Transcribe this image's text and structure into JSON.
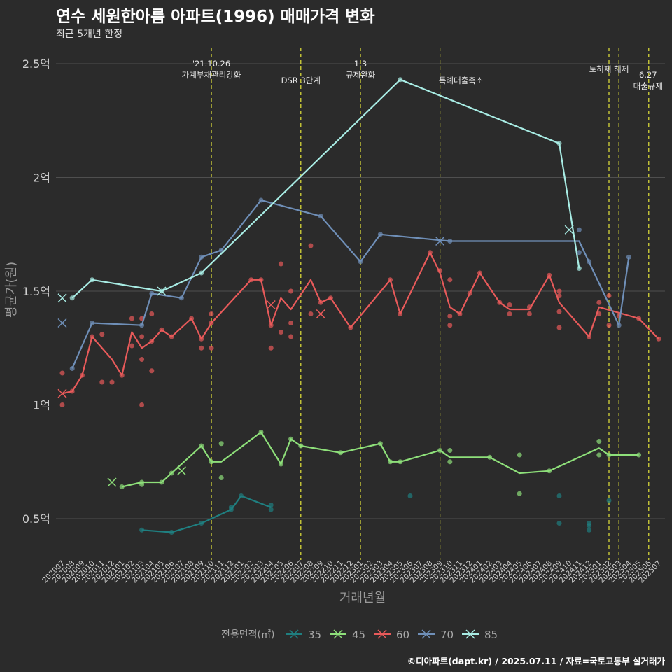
{
  "header": {
    "title": "연수 세원한아름 아파트(1996) 매매가격 변화",
    "subtitle": "최근 5개년 한정"
  },
  "caption": "©디아파트(dapt.kr) / 2025.07.11 / 자료=국토교통부 실거래가",
  "colors": {
    "35": "#1f7f80",
    "45": "#8ee07a",
    "60": "#e85a5a",
    "70": "#6f8fb8",
    "85": "#a8ece4",
    "background": "#2b2b2b",
    "grid": "#4f4f4f",
    "event_line": "#e5e53a"
  },
  "chart_data": {
    "type": "line",
    "xlabel": "거래년월",
    "ylabel": "평균가(원)",
    "ylim": [
      0.33,
      2.56
    ],
    "y_unit": "억",
    "yticks": [
      {
        "value": 0.5,
        "label": "0.5억"
      },
      {
        "value": 1.0,
        "label": "1억"
      },
      {
        "value": 1.5,
        "label": "1.5억"
      },
      {
        "value": 2.0,
        "label": "2억"
      },
      {
        "value": 2.5,
        "label": "2.5억"
      }
    ],
    "grid": true,
    "legend": {
      "title": "전용면적(㎡)",
      "position": "bottom"
    },
    "categories": [
      "202007",
      "202008",
      "202009",
      "202010",
      "202011",
      "202012",
      "202101",
      "202102",
      "202103",
      "202104",
      "202105",
      "202106",
      "202107",
      "202108",
      "202109",
      "202110",
      "202111",
      "202112",
      "202201",
      "202202",
      "202203",
      "202204",
      "202205",
      "202206",
      "202207",
      "202208",
      "202209",
      "202210",
      "202211",
      "202212",
      "202301",
      "202302",
      "202303",
      "202304",
      "202305",
      "202306",
      "202307",
      "202308",
      "202309",
      "202310",
      "202311",
      "202312",
      "202401",
      "202402",
      "202403",
      "202404",
      "202405",
      "202406",
      "202407",
      "202408",
      "202409",
      "202410",
      "202411",
      "202412",
      "202501",
      "202502",
      "202503",
      "202504",
      "202505",
      "202506",
      "202507"
    ],
    "events": [
      {
        "x": "202110",
        "label": "'21.10.26\n가계부채관리강화"
      },
      {
        "x": "202207",
        "label": "DSR 3단계"
      },
      {
        "x": "202301",
        "label": "1.3\n규제완화"
      },
      {
        "x": "202309",
        "label": "특례대출축소"
      },
      {
        "x": "202502",
        "label": "토허제 해제"
      },
      {
        "x": "202503",
        "label": ""
      },
      {
        "x": "202506",
        "label": "6.27\n대출규제"
      }
    ],
    "series": [
      {
        "name": "35",
        "line": [
          [
            "202103",
            0.45
          ],
          [
            "202106",
            0.44
          ],
          [
            "202109",
            0.48
          ],
          [
            "202112",
            0.54
          ],
          [
            "202201",
            0.6
          ],
          [
            "202204",
            0.55
          ]
        ],
        "points": [
          [
            "202103",
            0.45
          ],
          [
            "202106",
            0.44
          ],
          [
            "202109",
            0.48
          ],
          [
            "202112",
            0.54
          ],
          [
            "202112",
            0.55
          ],
          [
            "202201",
            0.6
          ],
          [
            "202204",
            0.54
          ],
          [
            "202204",
            0.56
          ],
          [
            "202306",
            0.6
          ],
          [
            "202409",
            0.6
          ],
          [
            "202409",
            0.48
          ],
          [
            "202412",
            0.45
          ],
          [
            "202412",
            0.47
          ],
          [
            "202412",
            0.48
          ],
          [
            "202502",
            0.58
          ]
        ],
        "cancelled": []
      },
      {
        "name": "45",
        "line": [
          [
            "202101",
            0.64
          ],
          [
            "202103",
            0.66
          ],
          [
            "202105",
            0.66
          ],
          [
            "202109",
            0.82
          ],
          [
            "202110",
            0.75
          ],
          [
            "202111",
            0.75
          ],
          [
            "202203",
            0.88
          ],
          [
            "202205",
            0.74
          ],
          [
            "202206",
            0.85
          ],
          [
            "202207",
            0.82
          ],
          [
            "202211",
            0.79
          ],
          [
            "202303",
            0.83
          ],
          [
            "202304",
            0.75
          ],
          [
            "202305",
            0.75
          ],
          [
            "202309",
            0.8
          ],
          [
            "202310",
            0.77
          ],
          [
            "202402",
            0.77
          ],
          [
            "202405",
            0.7
          ],
          [
            "202408",
            0.71
          ],
          [
            "202501",
            0.81
          ],
          [
            "202502",
            0.78
          ],
          [
            "202505",
            0.78
          ]
        ],
        "points": [
          [
            "202101",
            0.64
          ],
          [
            "202103",
            0.65
          ],
          [
            "202103",
            0.66
          ],
          [
            "202105",
            0.66
          ],
          [
            "202106",
            0.7
          ],
          [
            "202109",
            0.82
          ],
          [
            "202110",
            0.75
          ],
          [
            "202111",
            0.83
          ],
          [
            "202111",
            0.68
          ],
          [
            "202203",
            0.88
          ],
          [
            "202205",
            0.74
          ],
          [
            "202206",
            0.85
          ],
          [
            "202207",
            0.82
          ],
          [
            "202211",
            0.79
          ],
          [
            "202303",
            0.83
          ],
          [
            "202304",
            0.75
          ],
          [
            "202305",
            0.75
          ],
          [
            "202309",
            0.8
          ],
          [
            "202310",
            0.8
          ],
          [
            "202310",
            0.75
          ],
          [
            "202402",
            0.77
          ],
          [
            "202405",
            0.78
          ],
          [
            "202405",
            0.61
          ],
          [
            "202408",
            0.71
          ],
          [
            "202501",
            0.84
          ],
          [
            "202501",
            0.78
          ],
          [
            "202502",
            0.78
          ],
          [
            "202505",
            0.78
          ]
        ],
        "cancelled": [
          [
            "202012",
            0.66
          ],
          [
            "202107",
            0.71
          ]
        ]
      },
      {
        "name": "60",
        "line": [
          [
            "202007",
            1.05
          ],
          [
            "202008",
            1.06
          ],
          [
            "202009",
            1.13
          ],
          [
            "202010",
            1.3
          ],
          [
            "202012",
            1.2
          ],
          [
            "202101",
            1.13
          ],
          [
            "202102",
            1.32
          ],
          [
            "202103",
            1.25
          ],
          [
            "202104",
            1.28
          ],
          [
            "202105",
            1.33
          ],
          [
            "202106",
            1.3
          ],
          [
            "202108",
            1.38
          ],
          [
            "202109",
            1.29
          ],
          [
            "202110",
            1.36
          ],
          [
            "202202",
            1.55
          ],
          [
            "202203",
            1.55
          ],
          [
            "202204",
            1.35
          ],
          [
            "202205",
            1.47
          ],
          [
            "202206",
            1.42
          ],
          [
            "202208",
            1.55
          ],
          [
            "202209",
            1.45
          ],
          [
            "202210",
            1.47
          ],
          [
            "202212",
            1.34
          ],
          [
            "202304",
            1.55
          ],
          [
            "202305",
            1.4
          ],
          [
            "202308",
            1.67
          ],
          [
            "202309",
            1.58
          ],
          [
            "202310",
            1.43
          ],
          [
            "202311",
            1.4
          ],
          [
            "202312",
            1.49
          ],
          [
            "202401",
            1.58
          ],
          [
            "202403",
            1.45
          ],
          [
            "202404",
            1.42
          ],
          [
            "202406",
            1.42
          ],
          [
            "202408",
            1.57
          ],
          [
            "202409",
            1.45
          ],
          [
            "202412",
            1.3
          ],
          [
            "202501",
            1.43
          ],
          [
            "202505",
            1.38
          ],
          [
            "202507",
            1.29
          ]
        ],
        "points": [
          [
            "202007",
            1.14
          ],
          [
            "202007",
            1.0
          ],
          [
            "202008",
            1.06
          ],
          [
            "202009",
            1.13
          ],
          [
            "202010",
            1.3
          ],
          [
            "202011",
            1.1
          ],
          [
            "202011",
            1.31
          ],
          [
            "202012",
            1.1
          ],
          [
            "202101",
            1.13
          ],
          [
            "202102",
            1.38
          ],
          [
            "202102",
            1.26
          ],
          [
            "202103",
            1.38
          ],
          [
            "202103",
            1.3
          ],
          [
            "202103",
            1.2
          ],
          [
            "202103",
            1.0
          ],
          [
            "202104",
            1.4
          ],
          [
            "202104",
            1.15
          ],
          [
            "202104",
            1.28
          ],
          [
            "202105",
            1.33
          ],
          [
            "202106",
            1.3
          ],
          [
            "202108",
            1.38
          ],
          [
            "202109",
            1.25
          ],
          [
            "202109",
            1.29
          ],
          [
            "202110",
            1.4
          ],
          [
            "202110",
            1.25
          ],
          [
            "202110",
            1.36
          ],
          [
            "202202",
            1.55
          ],
          [
            "202203",
            1.55
          ],
          [
            "202204",
            1.25
          ],
          [
            "202204",
            1.35
          ],
          [
            "202205",
            1.62
          ],
          [
            "202205",
            1.32
          ],
          [
            "202206",
            1.5
          ],
          [
            "202206",
            1.36
          ],
          [
            "202206",
            1.3
          ],
          [
            "202208",
            1.7
          ],
          [
            "202208",
            1.4
          ],
          [
            "202209",
            1.45
          ],
          [
            "202210",
            1.47
          ],
          [
            "202212",
            1.34
          ],
          [
            "202304",
            1.55
          ],
          [
            "202305",
            1.4
          ],
          [
            "202308",
            1.67
          ],
          [
            "202309",
            1.59
          ],
          [
            "202310",
            1.55
          ],
          [
            "202310",
            1.39
          ],
          [
            "202310",
            1.35
          ],
          [
            "202311",
            1.4
          ],
          [
            "202312",
            1.49
          ],
          [
            "202401",
            1.58
          ],
          [
            "202403",
            1.45
          ],
          [
            "202404",
            1.44
          ],
          [
            "202404",
            1.4
          ],
          [
            "202406",
            1.43
          ],
          [
            "202406",
            1.4
          ],
          [
            "202408",
            1.57
          ],
          [
            "202409",
            1.5
          ],
          [
            "202409",
            1.48
          ],
          [
            "202409",
            1.41
          ],
          [
            "202409",
            1.34
          ],
          [
            "202412",
            1.3
          ],
          [
            "202501",
            1.45
          ],
          [
            "202501",
            1.4
          ],
          [
            "202502",
            1.48
          ],
          [
            "202502",
            1.35
          ],
          [
            "202503",
            1.39
          ],
          [
            "202505",
            1.38
          ],
          [
            "202507",
            1.29
          ]
        ],
        "cancelled": [
          [
            "202007",
            1.05
          ],
          [
            "202204",
            1.44
          ],
          [
            "202209",
            1.4
          ]
        ]
      },
      {
        "name": "70",
        "line": [
          [
            "202008",
            1.16
          ],
          [
            "202010",
            1.36
          ],
          [
            "202103",
            1.35
          ],
          [
            "202104",
            1.49
          ],
          [
            "202107",
            1.47
          ],
          [
            "202109",
            1.65
          ],
          [
            "202111",
            1.68
          ],
          [
            "202203",
            1.9
          ],
          [
            "202209",
            1.83
          ],
          [
            "202301",
            1.63
          ],
          [
            "202303",
            1.75
          ],
          [
            "202310",
            1.72
          ],
          [
            "202411",
            1.72
          ],
          [
            "202503",
            1.35
          ],
          [
            "202504",
            1.65
          ]
        ],
        "points": [
          [
            "202008",
            1.16
          ],
          [
            "202010",
            1.36
          ],
          [
            "202103",
            1.35
          ],
          [
            "202104",
            1.49
          ],
          [
            "202107",
            1.47
          ],
          [
            "202109",
            1.65
          ],
          [
            "202111",
            1.68
          ],
          [
            "202203",
            1.9
          ],
          [
            "202209",
            1.83
          ],
          [
            "202301",
            1.63
          ],
          [
            "202303",
            1.75
          ],
          [
            "202310",
            1.72
          ],
          [
            "202411",
            1.77
          ],
          [
            "202411",
            1.67
          ],
          [
            "202412",
            1.63
          ],
          [
            "202503",
            1.35
          ],
          [
            "202504",
            1.65
          ]
        ],
        "cancelled": [
          [
            "202007",
            1.36
          ],
          [
            "202309",
            1.72
          ]
        ]
      },
      {
        "name": "85",
        "line": [
          [
            "202008",
            1.47
          ],
          [
            "202010",
            1.55
          ],
          [
            "202105",
            1.5
          ],
          [
            "202109",
            1.58
          ],
          [
            "202305",
            2.43
          ],
          [
            "202409",
            2.15
          ],
          [
            "202411",
            1.6
          ]
        ],
        "points": [
          [
            "202008",
            1.47
          ],
          [
            "202010",
            1.55
          ],
          [
            "202105",
            1.5
          ],
          [
            "202109",
            1.58
          ],
          [
            "202305",
            2.43
          ],
          [
            "202409",
            2.15
          ],
          [
            "202411",
            1.6
          ]
        ],
        "cancelled": [
          [
            "202007",
            1.47
          ],
          [
            "202105",
            1.5
          ],
          [
            "202410",
            1.77
          ]
        ]
      }
    ]
  }
}
